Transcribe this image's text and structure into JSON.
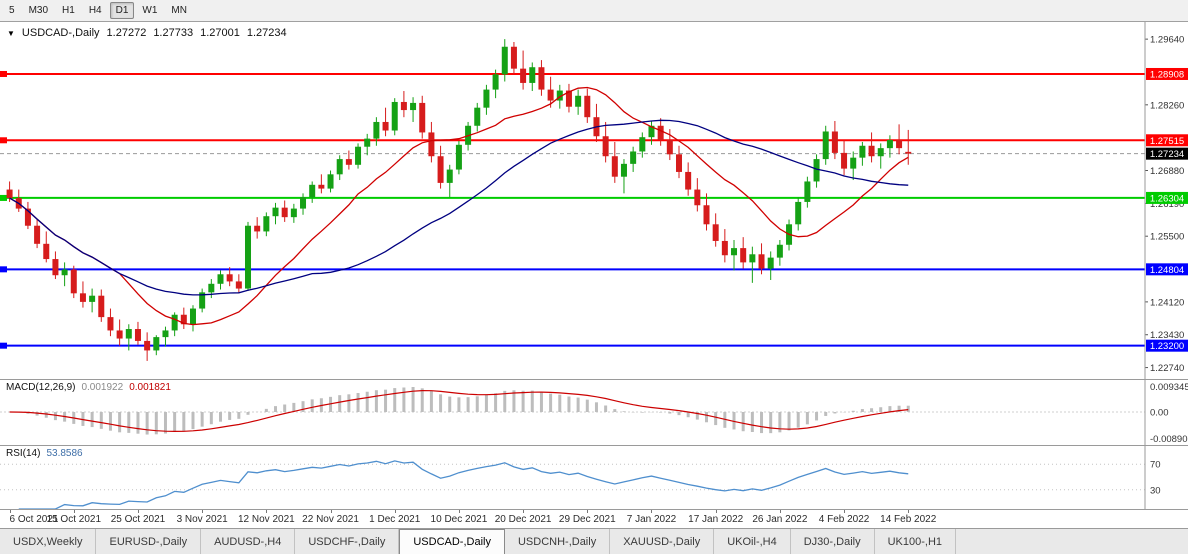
{
  "icons": {
    "dropdown": "▼"
  },
  "toolbar": {
    "timeframes": [
      "5",
      "M30",
      "H1",
      "H4",
      "D1",
      "W1",
      "MN"
    ],
    "active_timeframe": "D1"
  },
  "chart_header": {
    "symbol": "USDCAD-,Daily",
    "open": "1.27272",
    "high": "1.27733",
    "low": "1.27001",
    "close": "1.27234"
  },
  "price_axis": {
    "ticks": [
      {
        "label": "1.29640",
        "value": 1.2964
      },
      {
        "label": "1.28260",
        "value": 1.2826
      },
      {
        "label": "1.26880",
        "value": 1.2688
      },
      {
        "label": "1.26190",
        "value": 1.2619
      },
      {
        "label": "1.25500",
        "value": 1.255
      },
      {
        "label": "1.24120",
        "value": 1.2412
      },
      {
        "label": "1.23430",
        "value": 1.2343
      },
      {
        "label": "1.22740",
        "value": 1.2274
      }
    ]
  },
  "macd_panel": {
    "label": "MACD(12,26,9)",
    "value_main": "0.001922",
    "value_signal": "0.001821",
    "axis_labels": [
      "0.009345",
      "0.00",
      "-0.008908"
    ]
  },
  "rsi_panel": {
    "label": "RSI(14)",
    "value": "53.8586",
    "axis_labels": [
      "70",
      "30"
    ],
    "levels": [
      70,
      30
    ]
  },
  "tabs": {
    "items": [
      "USDX,Weekly",
      "EURUSD-,Daily",
      "AUDUSD-,H4",
      "USDCHF-,Daily",
      "USDCAD-,Daily",
      "USDCNH-,Daily",
      "XAUUSD-,Daily",
      "UKOil-,H4",
      "DJ30-,Daily",
      "UK100-,H1"
    ],
    "active": "USDCAD-,Daily"
  },
  "chart_data": {
    "type": "candlestick",
    "symbol": "USDCAD",
    "timeframe": "Daily",
    "title": "USDCAD-,Daily",
    "price_range": [
      1.225,
      1.3
    ],
    "x_labels": [
      "6 Oct 2021",
      "15 Oct 2021",
      "25 Oct 2021",
      "3 Nov 2021",
      "12 Nov 2021",
      "22 Nov 2021",
      "1 Dec 2021",
      "10 Dec 2021",
      "20 Dec 2021",
      "29 Dec 2021",
      "7 Jan 2022",
      "17 Jan 2022",
      "26 Jan 2022",
      "4 Feb 2022",
      "14 Feb 2022"
    ],
    "x_label_step": 7,
    "colors": {
      "up": "#15a115",
      "down": "#d61c1c",
      "ma_fast": "#d00000",
      "ma_slow": "#000080",
      "macd_hist": "#bdbdbd",
      "macd_signal": "#cc0000",
      "rsi_line": "#4f8fce"
    },
    "moving_averages": [
      {
        "period": 13,
        "color": "#d00000"
      },
      {
        "period": 34,
        "color": "#000080"
      }
    ],
    "levels": [
      {
        "price": 1.28908,
        "label": "1.28908",
        "color": "#ff0000",
        "style": "line"
      },
      {
        "price": 1.27515,
        "label": "1.27515",
        "color": "#ff0000",
        "style": "line"
      },
      {
        "price": 1.27234,
        "label": "1.27234",
        "color": "#000000",
        "style": "current"
      },
      {
        "price": 1.26304,
        "label": "1.26304",
        "color": "#00cc00",
        "style": "line"
      },
      {
        "price": 1.24804,
        "label": "1.24804",
        "color": "#0000ff",
        "style": "line"
      },
      {
        "price": 1.232,
        "label": "1.23200",
        "color": "#0000ff",
        "style": "line"
      }
    ],
    "indicators": {
      "macd": {
        "fast": 12,
        "slow": 26,
        "signal": 9
      },
      "rsi": {
        "period": 14
      }
    },
    "candles_ohlc": [
      [
        1.2648,
        1.2665,
        1.2622,
        1.263
      ],
      [
        1.263,
        1.2648,
        1.2601,
        1.2608
      ],
      [
        1.2608,
        1.2622,
        1.2565,
        1.2572
      ],
      [
        1.2572,
        1.2585,
        1.2525,
        1.2534
      ],
      [
        1.2534,
        1.256,
        1.2495,
        1.2502
      ],
      [
        1.2502,
        1.2518,
        1.246,
        1.2468
      ],
      [
        1.2468,
        1.2495,
        1.2445,
        1.248
      ],
      [
        1.248,
        1.2488,
        1.242,
        1.243
      ],
      [
        1.243,
        1.2455,
        1.24,
        1.2412
      ],
      [
        1.2412,
        1.244,
        1.239,
        1.2425
      ],
      [
        1.2425,
        1.2438,
        1.237,
        1.238
      ],
      [
        1.238,
        1.2398,
        1.234,
        1.2352
      ],
      [
        1.2352,
        1.2375,
        1.232,
        1.2335
      ],
      [
        1.2335,
        1.2365,
        1.231,
        1.2355
      ],
      [
        1.2355,
        1.237,
        1.2322,
        1.233
      ],
      [
        1.233,
        1.2348,
        1.2288,
        1.231
      ],
      [
        1.231,
        1.2342,
        1.23,
        1.2338
      ],
      [
        1.2338,
        1.236,
        1.2318,
        1.2352
      ],
      [
        1.2352,
        1.239,
        1.234,
        1.2385
      ],
      [
        1.2385,
        1.24,
        1.2355,
        1.2365
      ],
      [
        1.2365,
        1.2405,
        1.235,
        1.2398
      ],
      [
        1.2398,
        1.244,
        1.239,
        1.2432
      ],
      [
        1.2432,
        1.246,
        1.242,
        1.245
      ],
      [
        1.245,
        1.2478,
        1.2438,
        1.247
      ],
      [
        1.247,
        1.2485,
        1.2445,
        1.2455
      ],
      [
        1.2455,
        1.247,
        1.243,
        1.244
      ],
      [
        1.244,
        1.258,
        1.2435,
        1.2572
      ],
      [
        1.2572,
        1.259,
        1.2545,
        1.256
      ],
      [
        1.256,
        1.26,
        1.255,
        1.2592
      ],
      [
        1.2592,
        1.262,
        1.2575,
        1.261
      ],
      [
        1.261,
        1.2625,
        1.258,
        1.259
      ],
      [
        1.259,
        1.2618,
        1.2578,
        1.2608
      ],
      [
        1.2608,
        1.264,
        1.2595,
        1.2632
      ],
      [
        1.2632,
        1.2665,
        1.262,
        1.2658
      ],
      [
        1.2658,
        1.268,
        1.264,
        1.265
      ],
      [
        1.265,
        1.2688,
        1.2642,
        1.268
      ],
      [
        1.268,
        1.272,
        1.2668,
        1.2712
      ],
      [
        1.2712,
        1.273,
        1.269,
        1.27
      ],
      [
        1.27,
        1.2745,
        1.2692,
        1.2738
      ],
      [
        1.2738,
        1.2765,
        1.272,
        1.2755
      ],
      [
        1.2755,
        1.28,
        1.274,
        1.279
      ],
      [
        1.279,
        1.282,
        1.276,
        1.2772
      ],
      [
        1.2772,
        1.284,
        1.2762,
        1.2832
      ],
      [
        1.2832,
        1.2855,
        1.28,
        1.2815
      ],
      [
        1.2815,
        1.2842,
        1.279,
        1.283
      ],
      [
        1.283,
        1.2845,
        1.2755,
        1.2768
      ],
      [
        1.2768,
        1.279,
        1.2705,
        1.2718
      ],
      [
        1.2718,
        1.274,
        1.265,
        1.2662
      ],
      [
        1.2662,
        1.27,
        1.2632,
        1.269
      ],
      [
        1.269,
        1.275,
        1.268,
        1.2742
      ],
      [
        1.2742,
        1.279,
        1.273,
        1.2782
      ],
      [
        1.2782,
        1.283,
        1.277,
        1.282
      ],
      [
        1.282,
        1.2868,
        1.2805,
        1.2858
      ],
      [
        1.2858,
        1.29,
        1.284,
        1.289
      ],
      [
        1.289,
        1.2964,
        1.2875,
        1.2948
      ],
      [
        1.2948,
        1.2958,
        1.289,
        1.2902
      ],
      [
        1.2902,
        1.294,
        1.2858,
        1.2872
      ],
      [
        1.2872,
        1.2915,
        1.2855,
        1.2905
      ],
      [
        1.2905,
        1.292,
        1.2845,
        1.2858
      ],
      [
        1.2858,
        1.2885,
        1.282,
        1.2835
      ],
      [
        1.2835,
        1.2868,
        1.2818,
        1.2856
      ],
      [
        1.2856,
        1.287,
        1.281,
        1.2822
      ],
      [
        1.2822,
        1.2858,
        1.2805,
        1.2845
      ],
      [
        1.2845,
        1.286,
        1.2788,
        1.28
      ],
      [
        1.28,
        1.2828,
        1.2748,
        1.276
      ],
      [
        1.276,
        1.279,
        1.2705,
        1.2718
      ],
      [
        1.2718,
        1.2748,
        1.2662,
        1.2675
      ],
      [
        1.2675,
        1.2712,
        1.264,
        1.2702
      ],
      [
        1.2702,
        1.2738,
        1.2685,
        1.2728
      ],
      [
        1.2728,
        1.2768,
        1.2715,
        1.2758
      ],
      [
        1.2758,
        1.2792,
        1.2742,
        1.2782
      ],
      [
        1.2782,
        1.2798,
        1.274,
        1.2752
      ],
      [
        1.2752,
        1.2775,
        1.271,
        1.2722
      ],
      [
        1.2722,
        1.274,
        1.2672,
        1.2685
      ],
      [
        1.2685,
        1.2705,
        1.2635,
        1.2648
      ],
      [
        1.2648,
        1.2672,
        1.2602,
        1.2615
      ],
      [
        1.2615,
        1.264,
        1.2562,
        1.2575
      ],
      [
        1.2575,
        1.2598,
        1.2528,
        1.254
      ],
      [
        1.254,
        1.2565,
        1.2495,
        1.251
      ],
      [
        1.251,
        1.2542,
        1.2478,
        1.2525
      ],
      [
        1.2525,
        1.2548,
        1.2482,
        1.2495
      ],
      [
        1.2495,
        1.2528,
        1.2452,
        1.2512
      ],
      [
        1.2512,
        1.2535,
        1.247,
        1.2482
      ],
      [
        1.2482,
        1.2518,
        1.2458,
        1.2505
      ],
      [
        1.2505,
        1.2542,
        1.2488,
        1.2532
      ],
      [
        1.2532,
        1.2585,
        1.252,
        1.2575
      ],
      [
        1.2575,
        1.2632,
        1.2562,
        1.2622
      ],
      [
        1.2622,
        1.2675,
        1.261,
        1.2665
      ],
      [
        1.2665,
        1.2722,
        1.2652,
        1.2712
      ],
      [
        1.2712,
        1.2782,
        1.27,
        1.277
      ],
      [
        1.277,
        1.2792,
        1.2712,
        1.2725
      ],
      [
        1.2725,
        1.2752,
        1.2678,
        1.2692
      ],
      [
        1.2692,
        1.2728,
        1.2668,
        1.2715
      ],
      [
        1.2715,
        1.2748,
        1.2698,
        1.274
      ],
      [
        1.274,
        1.2768,
        1.2705,
        1.2718
      ],
      [
        1.2718,
        1.2745,
        1.2692,
        1.2735
      ],
      [
        1.2735,
        1.2762,
        1.2715,
        1.2752
      ],
      [
        1.2752,
        1.2785,
        1.2722,
        1.2735
      ],
      [
        1.27272,
        1.27733,
        1.27001,
        1.27234
      ]
    ]
  }
}
